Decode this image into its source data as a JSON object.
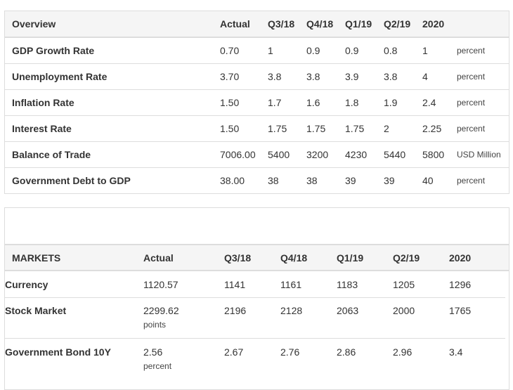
{
  "overview": {
    "headers": [
      "Overview",
      "Actual",
      "Q3/18",
      "Q4/18",
      "Q1/19",
      "Q2/19",
      "2020"
    ],
    "rows": [
      {
        "name": "GDP Growth Rate",
        "actual": "0.70",
        "q3_18": "1",
        "q4_18": "0.9",
        "q1_19": "0.9",
        "q2_19": "0.8",
        "y2020": "1",
        "unit": "percent"
      },
      {
        "name": "Unemployment Rate",
        "actual": "3.70",
        "q3_18": "3.8",
        "q4_18": "3.8",
        "q1_19": "3.9",
        "q2_19": "3.8",
        "y2020": "4",
        "unit": "percent"
      },
      {
        "name": "Inflation Rate",
        "actual": "1.50",
        "q3_18": "1.7",
        "q4_18": "1.6",
        "q1_19": "1.8",
        "q2_19": "1.9",
        "y2020": "2.4",
        "unit": "percent"
      },
      {
        "name": "Interest Rate",
        "actual": "1.50",
        "q3_18": "1.75",
        "q4_18": "1.75",
        "q1_19": "1.75",
        "q2_19": "2",
        "y2020": "2.25",
        "unit": "percent"
      },
      {
        "name": "Balance of Trade",
        "actual": "7006.00",
        "q3_18": "5400",
        "q4_18": "3200",
        "q1_19": "4230",
        "q2_19": "5440",
        "y2020": "5800",
        "unit": "USD Million"
      },
      {
        "name": "Government Debt to GDP",
        "actual": "38.00",
        "q3_18": "38",
        "q4_18": "38",
        "q1_19": "39",
        "q2_19": "39",
        "y2020": "40",
        "unit": "percent"
      }
    ]
  },
  "markets": {
    "headers": [
      "MARKETS",
      "Actual",
      "Q3/18",
      "Q4/18",
      "Q1/19",
      "Q2/19",
      "2020"
    ],
    "rows": [
      {
        "name": "Currency",
        "actual": "1120.57",
        "unit": "",
        "q3_18": "1141",
        "q4_18": "1161",
        "q1_19": "1183",
        "q2_19": "1205",
        "y2020": "1296"
      },
      {
        "name": "Stock Market",
        "actual": "2299.62",
        "unit": "points",
        "q3_18": "2196",
        "q4_18": "2128",
        "q1_19": "2063",
        "q2_19": "2000",
        "y2020": "1765"
      },
      {
        "name": "Government Bond 10Y",
        "actual": "2.56",
        "unit": "percent",
        "q3_18": "2.67",
        "q4_18": "2.76",
        "q1_19": "2.86",
        "q2_19": "2.96",
        "y2020": "3.4"
      }
    ]
  }
}
